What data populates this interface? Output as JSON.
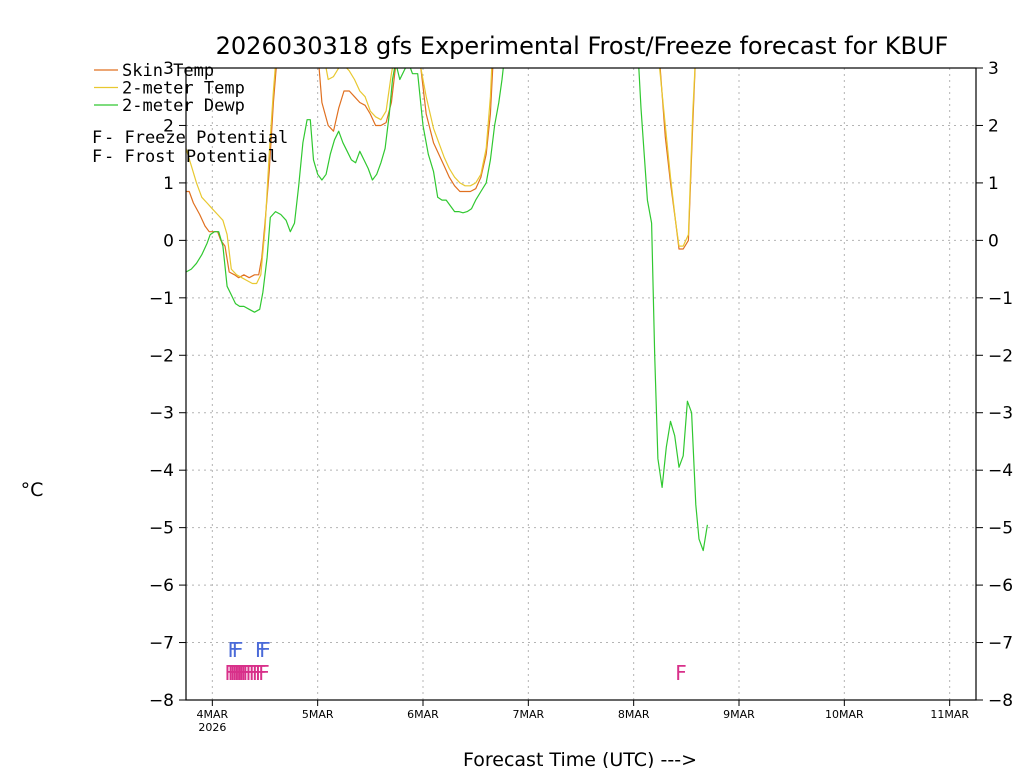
{
  "chart_data": {
    "type": "line",
    "title": "2026030318 gfs Experimental Frost/Freeze forecast for KBUF",
    "ylabel": "°C",
    "xlabel": "Forecast Time (UTC) --->",
    "ylim": [
      -8,
      3
    ],
    "xlim": [
      -0.25,
      7.25
    ],
    "yticks": [
      -8,
      -7,
      -6,
      -5,
      -4,
      -3,
      -2,
      -1,
      0,
      1,
      2,
      3
    ],
    "xticks": [
      {
        "value": 0,
        "label": "4MAR",
        "sublabel": "2026"
      },
      {
        "value": 1,
        "label": "5MAR",
        "sublabel": ""
      },
      {
        "value": 2,
        "label": "6MAR",
        "sublabel": ""
      },
      {
        "value": 3,
        "label": "7MAR",
        "sublabel": ""
      },
      {
        "value": 4,
        "label": "8MAR",
        "sublabel": ""
      },
      {
        "value": 5,
        "label": "9MAR",
        "sublabel": ""
      },
      {
        "value": 6,
        "label": "10MAR",
        "sublabel": ""
      },
      {
        "value": 7,
        "label": "11MAR",
        "sublabel": ""
      }
    ],
    "grid": true,
    "x_units": "days since 2026-03-04 00Z",
    "series": [
      {
        "name": "Skin Temp",
        "color": "#e07020",
        "points": [
          [
            -0.25,
            0.85
          ],
          [
            -0.22,
            0.85
          ],
          [
            -0.18,
            0.65
          ],
          [
            -0.12,
            0.45
          ],
          [
            -0.07,
            0.25
          ],
          [
            -0.03,
            0.15
          ],
          [
            0.0,
            0.15
          ],
          [
            0.05,
            0.15
          ],
          [
            0.08,
            0.0
          ],
          [
            0.12,
            -0.1
          ],
          [
            0.16,
            -0.55
          ],
          [
            0.21,
            -0.6
          ],
          [
            0.25,
            -0.65
          ],
          [
            0.3,
            -0.6
          ],
          [
            0.35,
            -0.65
          ],
          [
            0.4,
            -0.6
          ],
          [
            0.44,
            -0.6
          ],
          [
            0.47,
            -0.3
          ],
          [
            0.5,
            0.3
          ],
          [
            0.54,
            1.2
          ],
          [
            0.58,
            2.4
          ],
          [
            0.62,
            3.3
          ],
          null,
          [
            1.0,
            3.3
          ],
          [
            1.04,
            2.4
          ],
          [
            1.1,
            2.0
          ],
          [
            1.15,
            1.9
          ],
          [
            1.2,
            2.3
          ],
          [
            1.25,
            2.6
          ],
          [
            1.3,
            2.6
          ],
          [
            1.35,
            2.5
          ],
          [
            1.4,
            2.4
          ],
          [
            1.45,
            2.35
          ],
          [
            1.5,
            2.2
          ],
          [
            1.55,
            2.0
          ],
          [
            1.6,
            2.0
          ],
          [
            1.65,
            2.05
          ],
          [
            1.7,
            2.4
          ],
          [
            1.75,
            3.2
          ],
          null,
          [
            1.96,
            3.3
          ],
          [
            2.03,
            2.2
          ],
          [
            2.1,
            1.7
          ],
          [
            2.15,
            1.5
          ],
          [
            2.2,
            1.3
          ],
          [
            2.25,
            1.1
          ],
          [
            2.3,
            0.95
          ],
          [
            2.35,
            0.85
          ],
          [
            2.4,
            0.85
          ],
          [
            2.45,
            0.85
          ],
          [
            2.5,
            0.9
          ],
          [
            2.55,
            1.1
          ],
          [
            2.6,
            1.5
          ],
          [
            2.64,
            2.2
          ],
          [
            2.67,
            3.3
          ],
          null,
          [
            4.24,
            3.3
          ],
          [
            4.3,
            1.8
          ],
          [
            4.35,
            1.0
          ],
          [
            4.4,
            0.3
          ],
          [
            4.43,
            -0.15
          ],
          [
            4.47,
            -0.15
          ],
          [
            4.52,
            0.0
          ],
          [
            4.56,
            2.0
          ],
          [
            4.59,
            3.3
          ]
        ]
      },
      {
        "name": "2-meter Temp",
        "color": "#e8c830",
        "points": [
          [
            -0.25,
            1.6
          ],
          [
            -0.2,
            1.3
          ],
          [
            -0.15,
            1.0
          ],
          [
            -0.1,
            0.75
          ],
          [
            -0.05,
            0.65
          ],
          [
            0.0,
            0.55
          ],
          [
            0.05,
            0.45
          ],
          [
            0.1,
            0.35
          ],
          [
            0.14,
            0.1
          ],
          [
            0.18,
            -0.5
          ],
          [
            0.23,
            -0.6
          ],
          [
            0.28,
            -0.65
          ],
          [
            0.33,
            -0.7
          ],
          [
            0.38,
            -0.75
          ],
          [
            0.42,
            -0.75
          ],
          [
            0.46,
            -0.6
          ],
          [
            0.5,
            0.2
          ],
          [
            0.54,
            1.5
          ],
          [
            0.58,
            2.6
          ],
          [
            0.61,
            3.3
          ],
          null,
          [
            1.05,
            3.3
          ],
          [
            1.1,
            2.8
          ],
          [
            1.15,
            2.85
          ],
          [
            1.2,
            3.0
          ],
          [
            1.25,
            3.05
          ],
          [
            1.3,
            2.95
          ],
          [
            1.35,
            2.8
          ],
          [
            1.4,
            2.6
          ],
          [
            1.45,
            2.5
          ],
          [
            1.5,
            2.25
          ],
          [
            1.55,
            2.15
          ],
          [
            1.6,
            2.1
          ],
          [
            1.65,
            2.25
          ],
          [
            1.7,
            2.9
          ],
          [
            1.74,
            3.3
          ],
          null,
          [
            1.95,
            3.3
          ],
          [
            2.03,
            2.5
          ],
          [
            2.1,
            1.95
          ],
          [
            2.15,
            1.7
          ],
          [
            2.2,
            1.45
          ],
          [
            2.25,
            1.25
          ],
          [
            2.3,
            1.1
          ],
          [
            2.35,
            1.0
          ],
          [
            2.4,
            0.95
          ],
          [
            2.45,
            0.95
          ],
          [
            2.5,
            1.0
          ],
          [
            2.55,
            1.15
          ],
          [
            2.6,
            1.6
          ],
          [
            2.64,
            2.5
          ],
          [
            2.66,
            3.3
          ],
          null,
          [
            4.23,
            3.3
          ],
          [
            4.3,
            2.0
          ],
          [
            4.35,
            1.1
          ],
          [
            4.4,
            0.3
          ],
          [
            4.43,
            -0.1
          ],
          [
            4.47,
            -0.1
          ],
          [
            4.52,
            0.1
          ],
          [
            4.56,
            2.2
          ],
          [
            4.59,
            3.3
          ]
        ]
      },
      {
        "name": "2-meter Dewp",
        "color": "#30c830",
        "points": [
          [
            -0.25,
            -0.55
          ],
          [
            -0.2,
            -0.5
          ],
          [
            -0.15,
            -0.4
          ],
          [
            -0.1,
            -0.25
          ],
          [
            -0.05,
            -0.05
          ],
          [
            -0.02,
            0.1
          ],
          [
            0.02,
            0.15
          ],
          [
            0.06,
            0.15
          ],
          [
            0.1,
            -0.1
          ],
          [
            0.14,
            -0.8
          ],
          [
            0.18,
            -0.95
          ],
          [
            0.22,
            -1.1
          ],
          [
            0.26,
            -1.15
          ],
          [
            0.3,
            -1.15
          ],
          [
            0.35,
            -1.2
          ],
          [
            0.4,
            -1.25
          ],
          [
            0.45,
            -1.2
          ],
          [
            0.48,
            -0.9
          ],
          [
            0.52,
            -0.3
          ],
          [
            0.55,
            0.4
          ],
          [
            0.6,
            0.5
          ],
          [
            0.65,
            0.45
          ],
          [
            0.7,
            0.35
          ],
          [
            0.74,
            0.15
          ],
          [
            0.78,
            0.3
          ],
          [
            0.82,
            0.95
          ],
          [
            0.86,
            1.7
          ],
          [
            0.9,
            2.1
          ],
          [
            0.93,
            2.1
          ],
          [
            0.96,
            1.4
          ],
          [
            1.0,
            1.15
          ],
          [
            1.04,
            1.05
          ],
          [
            1.08,
            1.15
          ],
          [
            1.12,
            1.5
          ],
          [
            1.16,
            1.75
          ],
          [
            1.2,
            1.9
          ],
          [
            1.24,
            1.7
          ],
          [
            1.28,
            1.55
          ],
          [
            1.32,
            1.4
          ],
          [
            1.36,
            1.35
          ],
          [
            1.4,
            1.55
          ],
          [
            1.44,
            1.4
          ],
          [
            1.48,
            1.25
          ],
          [
            1.52,
            1.05
          ],
          [
            1.56,
            1.15
          ],
          [
            1.6,
            1.35
          ],
          [
            1.64,
            1.6
          ],
          [
            1.68,
            2.2
          ],
          [
            1.71,
            2.8
          ],
          [
            1.74,
            3.1
          ],
          [
            1.78,
            2.8
          ],
          [
            1.82,
            2.95
          ],
          [
            1.86,
            3.1
          ],
          [
            1.9,
            2.9
          ],
          [
            1.95,
            2.9
          ],
          [
            2.0,
            2.0
          ],
          [
            2.05,
            1.5
          ],
          [
            2.1,
            1.2
          ],
          [
            2.14,
            0.75
          ],
          [
            2.18,
            0.7
          ],
          [
            2.22,
            0.7
          ],
          [
            2.26,
            0.6
          ],
          [
            2.3,
            0.5
          ],
          [
            2.34,
            0.5
          ],
          [
            2.38,
            0.48
          ],
          [
            2.42,
            0.5
          ],
          [
            2.46,
            0.55
          ],
          [
            2.5,
            0.7
          ],
          [
            2.55,
            0.85
          ],
          [
            2.6,
            1.0
          ],
          [
            2.64,
            1.4
          ],
          [
            2.68,
            2.0
          ],
          [
            2.72,
            2.4
          ],
          [
            2.75,
            2.8
          ],
          [
            2.78,
            3.3
          ],
          null,
          [
            4.04,
            3.3
          ],
          [
            4.07,
            2.3
          ],
          [
            4.1,
            1.5
          ],
          [
            4.13,
            0.7
          ],
          [
            4.17,
            0.3
          ],
          [
            4.2,
            -2.0
          ],
          [
            4.23,
            -3.8
          ],
          [
            4.27,
            -4.3
          ],
          [
            4.31,
            -3.6
          ],
          [
            4.35,
            -3.15
          ],
          [
            4.39,
            -3.4
          ],
          [
            4.43,
            -3.95
          ],
          [
            4.47,
            -3.75
          ],
          [
            4.51,
            -2.8
          ],
          [
            4.55,
            -3.0
          ],
          [
            4.59,
            -4.6
          ],
          [
            4.62,
            -5.2
          ],
          [
            4.66,
            -5.4
          ],
          [
            4.7,
            -4.95
          ]
        ]
      }
    ],
    "potential_marks": [
      {
        "type": "Frost Potential",
        "color": "#4a6ad8",
        "glyph": "F",
        "row": "upper",
        "x": [
          0.2,
          0.24,
          0.46,
          0.5
        ]
      },
      {
        "type": "Freeze Potential",
        "color": "#d8308a",
        "glyph": "F",
        "row": "lower",
        "x": [
          0.17,
          0.2,
          0.22,
          0.24,
          0.26,
          0.28,
          0.3,
          0.32,
          0.34,
          0.37,
          0.4,
          0.43,
          0.46,
          0.49,
          4.45
        ]
      }
    ],
    "legend": {
      "position": "top-left",
      "lines": [
        {
          "label": "Skin Temp",
          "color": "#e07020"
        },
        {
          "label": "2-meter Temp",
          "color": "#e8c830"
        },
        {
          "label": "2-meter Dewp",
          "color": "#30c830"
        }
      ],
      "marks": [
        {
          "glyph": "F",
          "label": " - Freeze Potential",
          "color": "#d8308a"
        },
        {
          "glyph": "F",
          "label": " - Frost Potential",
          "color": "#4a6ad8"
        }
      ]
    }
  }
}
